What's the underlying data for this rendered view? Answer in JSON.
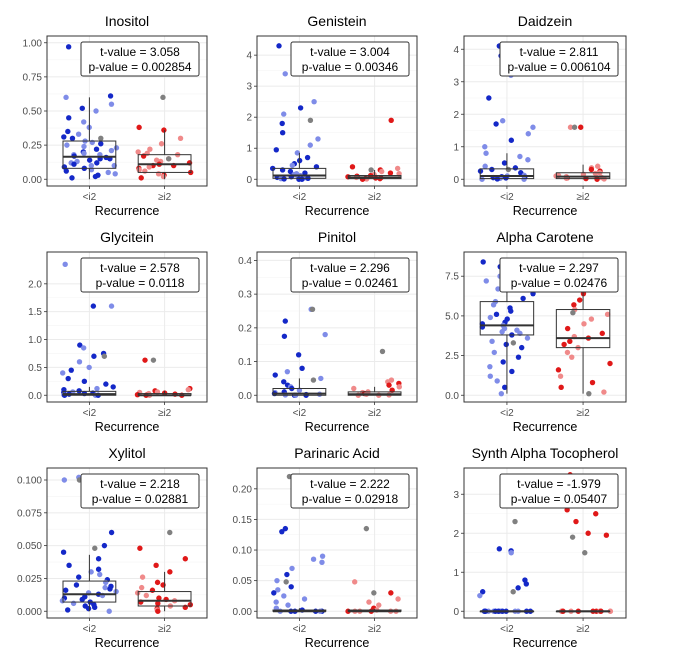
{
  "colors": {
    "low_group": "#1428c8",
    "low_group_light": "#7f8ce8",
    "high_group": "#e01818",
    "high_group_light": "#f08a8a",
    "shared": "#808080",
    "panel_border": "#333333",
    "grid": "#ebebeb",
    "box": "#333333"
  },
  "chart_data": [
    {
      "type": "box",
      "title": "Inositol",
      "xlabel": "Recurrence",
      "ylabel": "",
      "categories": [
        "<i2",
        "≥i2"
      ],
      "ylim": [
        0,
        1.0
      ],
      "yticks": [
        0,
        0.25,
        0.5,
        0.75,
        1.0
      ],
      "ytick_labels": [
        "0.00",
        "0.25",
        "0.50",
        "0.75",
        "1.00"
      ],
      "stats": {
        "t_label": "t-value = ",
        "t": "3.058",
        "p_label": "p-value = ",
        "p": "0.002854"
      },
      "boxes": [
        {
          "q1": 0.08,
          "median": 0.165,
          "q3": 0.28,
          "whisker_low": 0.0,
          "whisker_high": 0.6
        },
        {
          "q1": 0.05,
          "median": 0.11,
          "q3": 0.18,
          "whisker_low": 0.0,
          "whisker_high": 0.36
        }
      ],
      "points": [
        [
          0.61,
          0.6,
          0.55,
          0.52,
          0.5,
          0.45,
          0.42,
          0.38,
          0.35,
          0.33,
          0.31,
          0.3,
          0.28,
          0.27,
          0.26,
          0.25,
          0.24,
          0.23,
          0.22,
          0.21,
          0.2,
          0.2,
          0.19,
          0.18,
          0.18,
          0.17,
          0.16,
          0.15,
          0.15,
          0.14,
          0.13,
          0.12,
          0.12,
          0.11,
          0.1,
          0.1,
          0.09,
          0.08,
          0.07,
          0.06,
          0.05,
          0.04,
          0.03,
          0.02,
          0.01,
          0.97
        ],
        [
          0.38,
          0.36,
          0.3,
          0.26,
          0.22,
          0.2,
          0.19,
          0.18,
          0.17,
          0.15,
          0.14,
          0.13,
          0.12,
          0.11,
          0.1,
          0.1,
          0.09,
          0.08,
          0.07,
          0.06,
          0.05,
          0.04,
          0.03,
          0.02,
          0.01
        ]
      ],
      "shared_points": [
        0.97,
        0.6,
        0.3,
        0.15
      ]
    },
    {
      "type": "box",
      "title": "Genistein",
      "xlabel": "Recurrence",
      "ylabel": "",
      "categories": [
        "<i2",
        "≥i2"
      ],
      "ylim": [
        0,
        4.4
      ],
      "yticks": [
        0,
        1,
        2,
        3,
        4
      ],
      "ytick_labels": [
        "0",
        "1",
        "2",
        "3",
        "4"
      ],
      "stats": {
        "t_label": "t-value = ",
        "t": "3.004",
        "p_label": "p-value = ",
        "p": "0.00346"
      },
      "boxes": [
        {
          "q1": 0.03,
          "median": 0.12,
          "q3": 0.35,
          "whisker_low": 0.0,
          "whisker_high": 0.85
        },
        {
          "q1": 0.02,
          "median": 0.06,
          "q3": 0.12,
          "whisker_low": 0.0,
          "whisker_high": 0.3
        }
      ],
      "points": [
        [
          4.3,
          4.28,
          3.4,
          2.5,
          2.3,
          2.1,
          1.8,
          1.5,
          1.3,
          1.1,
          0.95,
          0.85,
          0.7,
          0.6,
          0.5,
          0.45,
          0.4,
          0.35,
          0.3,
          0.25,
          0.2,
          0.18,
          0.15,
          0.12,
          0.1,
          0.08,
          0.06,
          0.05,
          0.04,
          0.03,
          0.02,
          0.01,
          0.0,
          0.0
        ],
        [
          1.9,
          0.4,
          0.35,
          0.3,
          0.25,
          0.2,
          0.18,
          0.15,
          0.12,
          0.1,
          0.08,
          0.06,
          0.05,
          0.04,
          0.03,
          0.02,
          0.01,
          0.0
        ]
      ],
      "shared_points": [
        4.28,
        3.4,
        1.9,
        0.3
      ]
    },
    {
      "type": "box",
      "title": "Daidzein",
      "xlabel": "Recurrence",
      "ylabel": "",
      "categories": [
        "<i2",
        "≥i2"
      ],
      "ylim": [
        0,
        4.2
      ],
      "yticks": [
        0,
        1,
        2,
        3,
        4
      ],
      "ytick_labels": [
        "0",
        "1",
        "2",
        "3",
        "4"
      ],
      "stats": {
        "t_label": "t-value = ",
        "t": "2.811",
        "p_label": "p-value = ",
        "p": "0.006104"
      },
      "boxes": [
        {
          "q1": 0.02,
          "median": 0.1,
          "q3": 0.32,
          "whisker_low": 0.0,
          "whisker_high": 0.8
        },
        {
          "q1": 0.02,
          "median": 0.08,
          "q3": 0.2,
          "whisker_low": 0.0,
          "whisker_high": 0.45
        }
      ],
      "points": [
        [
          4.1,
          3.8,
          3.2,
          2.5,
          1.8,
          1.7,
          1.6,
          1.4,
          1.2,
          1.0,
          0.8,
          0.7,
          0.6,
          0.5,
          0.4,
          0.35,
          0.3,
          0.25,
          0.2,
          0.15,
          0.12,
          0.1,
          0.08,
          0.06,
          0.05,
          0.04,
          0.03,
          0.02,
          0.01,
          0.0,
          0.0
        ],
        [
          1.6,
          1.6,
          0.4,
          0.35,
          0.3,
          0.25,
          0.2,
          0.18,
          0.15,
          0.12,
          0.1,
          0.08,
          0.06,
          0.05,
          0.04,
          0.03,
          0.02,
          0.01,
          0.0
        ]
      ],
      "shared_points": [
        3.8,
        1.6,
        0.3
      ]
    },
    {
      "type": "box",
      "title": "Glycitein",
      "xlabel": "Recurrence",
      "ylabel": "",
      "categories": [
        "<i2",
        "≥i2"
      ],
      "ylim": [
        0,
        2.45
      ],
      "yticks": [
        0,
        0.5,
        1.0,
        1.5,
        2.0
      ],
      "ytick_labels": [
        "0.0",
        "0.5",
        "1.0",
        "1.5",
        "2.0"
      ],
      "stats": {
        "t_label": "t-value = ",
        "t": "2.578",
        "p_label": "p-value = ",
        "p": "0.0118"
      },
      "boxes": [
        {
          "q1": 0.0,
          "median": 0.02,
          "q3": 0.07,
          "whisker_low": 0.0,
          "whisker_high": 0.15
        },
        {
          "q1": 0.0,
          "median": 0.0,
          "q3": 0.03,
          "whisker_low": 0.0,
          "whisker_high": 0.08
        }
      ],
      "points": [
        [
          2.35,
          2.35,
          1.6,
          1.6,
          0.9,
          0.85,
          0.75,
          0.7,
          0.6,
          0.5,
          0.45,
          0.4,
          0.3,
          0.25,
          0.2,
          0.15,
          0.12,
          0.1,
          0.08,
          0.06,
          0.05,
          0.04,
          0.03,
          0.02,
          0.01,
          0.0,
          0.0,
          0.0
        ],
        [
          0.63,
          0.12,
          0.1,
          0.08,
          0.06,
          0.05,
          0.04,
          0.03,
          0.02,
          0.01,
          0.0,
          0.0,
          0.0
        ]
      ],
      "shared_points": [
        2.35,
        0.63,
        0.7
      ]
    },
    {
      "type": "box",
      "title": "Pinitol",
      "xlabel": "Recurrence",
      "ylabel": "",
      "categories": [
        "<i2",
        "≥i2"
      ],
      "ylim": [
        0,
        0.405
      ],
      "yticks": [
        0,
        0.1,
        0.2,
        0.3,
        0.4
      ],
      "ytick_labels": [
        "0.0",
        "0.1",
        "0.2",
        "0.3",
        "0.4"
      ],
      "stats": {
        "t_label": "t-value = ",
        "t": "2.296",
        "p_label": "p-value = ",
        "p": "0.02461"
      },
      "boxes": [
        {
          "q1": 0.0,
          "median": 0.005,
          "q3": 0.02,
          "whisker_low": 0.0,
          "whisker_high": 0.05
        },
        {
          "q1": 0.0,
          "median": 0.003,
          "q3": 0.01,
          "whisker_low": 0.0,
          "whisker_high": 0.025
        }
      ],
      "points": [
        [
          0.395,
          0.255,
          0.22,
          0.18,
          0.175,
          0.12,
          0.08,
          0.07,
          0.06,
          0.05,
          0.04,
          0.03,
          0.025,
          0.02,
          0.015,
          0.01,
          0.008,
          0.005,
          0.003,
          0.002,
          0.001,
          0.0,
          0.0,
          0.0
        ],
        [
          0.045,
          0.04,
          0.035,
          0.03,
          0.025,
          0.02,
          0.015,
          0.01,
          0.008,
          0.005,
          0.003,
          0.001,
          0.0,
          0.0
        ]
      ],
      "shared_points": [
        0.255,
        0.13,
        0.045
      ]
    },
    {
      "type": "box",
      "title": "Alpha Carotene",
      "xlabel": "Recurrence",
      "ylabel": "",
      "categories": [
        "<i2",
        "≥i2"
      ],
      "ylim": [
        0,
        8.6
      ],
      "yticks": [
        0,
        2.5,
        5.0,
        7.5
      ],
      "ytick_labels": [
        "0.0",
        "2.5",
        "5.0",
        "7.5"
      ],
      "stats": {
        "t_label": "t-value = ",
        "t": "2.297",
        "p_label": "p-value = ",
        "p": "0.02476"
      },
      "boxes": [
        {
          "q1": 3.8,
          "median": 4.4,
          "q3": 5.9,
          "whisker_low": 0.1,
          "whisker_high": 8.4
        },
        {
          "q1": 3.0,
          "median": 3.6,
          "q3": 5.4,
          "whisker_low": 0.1,
          "whisker_high": 7.7
        }
      ],
      "points": [
        [
          8.4,
          8.1,
          7.8,
          7.5,
          7.2,
          7.0,
          6.7,
          6.4,
          6.1,
          5.9,
          5.7,
          5.5,
          5.3,
          5.1,
          4.9,
          4.8,
          4.6,
          4.5,
          4.4,
          4.3,
          4.2,
          4.1,
          4.0,
          3.9,
          3.8,
          3.6,
          3.4,
          3.2,
          3.0,
          2.7,
          2.4,
          2.1,
          1.8,
          1.5,
          1.2,
          0.9,
          0.5,
          0.1
        ],
        [
          7.7,
          7.5,
          7.2,
          6.8,
          6.4,
          6.0,
          5.7,
          5.4,
          5.1,
          4.8,
          4.5,
          4.2,
          3.9,
          3.7,
          3.6,
          3.4,
          3.2,
          3.0,
          2.7,
          2.4,
          2.0,
          1.6,
          1.2,
          0.8,
          0.5,
          0.2
        ]
      ],
      "shared_points": [
        8.0,
        5.2,
        3.3,
        0.1
      ]
    },
    {
      "type": "box",
      "title": "Xylitol",
      "xlabel": "Recurrence",
      "ylabel": "",
      "categories": [
        "<i2",
        "≥i2"
      ],
      "ylim": [
        0,
        0.104
      ],
      "yticks": [
        0,
        0.025,
        0.05,
        0.075,
        0.1
      ],
      "ytick_labels": [
        "0.000",
        "0.025",
        "0.050",
        "0.075",
        "0.100"
      ],
      "stats": {
        "t_label": "t-value = ",
        "t": "2.218",
        "p_label": "p-value = ",
        "p": "0.02881"
      },
      "boxes": [
        {
          "q1": 0.007,
          "median": 0.013,
          "q3": 0.023,
          "whisker_low": 0.0,
          "whisker_high": 0.043
        },
        {
          "q1": 0.004,
          "median": 0.008,
          "q3": 0.015,
          "whisker_low": 0.0,
          "whisker_high": 0.03
        }
      ],
      "points": [
        [
          0.102,
          0.1,
          0.06,
          0.05,
          0.045,
          0.04,
          0.035,
          0.032,
          0.03,
          0.028,
          0.026,
          0.024,
          0.022,
          0.02,
          0.019,
          0.018,
          0.017,
          0.016,
          0.015,
          0.014,
          0.013,
          0.012,
          0.011,
          0.01,
          0.009,
          0.008,
          0.007,
          0.006,
          0.005,
          0.004,
          0.003,
          0.002,
          0.001,
          0.0
        ],
        [
          0.048,
          0.04,
          0.035,
          0.03,
          0.026,
          0.022,
          0.02,
          0.018,
          0.016,
          0.014,
          0.012,
          0.01,
          0.009,
          0.008,
          0.007,
          0.006,
          0.005,
          0.004,
          0.003,
          0.002,
          0.001,
          0.0
        ]
      ],
      "shared_points": [
        0.1,
        0.06,
        0.048
      ]
    },
    {
      "type": "box",
      "title": "Parinaric Acid",
      "xlabel": "Recurrence",
      "ylabel": "",
      "categories": [
        "<i2",
        "≥i2"
      ],
      "ylim": [
        0,
        0.223
      ],
      "yticks": [
        0,
        0.05,
        0.1,
        0.15,
        0.2
      ],
      "ytick_labels": [
        "0.00",
        "0.05",
        "0.10",
        "0.15",
        "0.20"
      ],
      "stats": {
        "t_label": "t-value = ",
        "t": "2.222",
        "p_label": "p-value = ",
        "p": "0.02918"
      },
      "boxes": [
        {
          "q1": 0.0,
          "median": 0.0,
          "q3": 0.002,
          "whisker_low": 0.0,
          "whisker_high": 0.005
        },
        {
          "q1": 0.0,
          "median": 0.0,
          "q3": 0.002,
          "whisker_low": 0.0,
          "whisker_high": 0.004
        }
      ],
      "points": [
        [
          0.22,
          0.22,
          0.135,
          0.13,
          0.09,
          0.085,
          0.08,
          0.07,
          0.06,
          0.05,
          0.04,
          0.035,
          0.03,
          0.025,
          0.02,
          0.015,
          0.01,
          0.005,
          0.002,
          0.0,
          0.0,
          0.0,
          0.0,
          0.0,
          0.0
        ],
        [
          0.048,
          0.03,
          0.02,
          0.015,
          0.01,
          0.005,
          0.002,
          0.0,
          0.0,
          0.0,
          0.0,
          0.0,
          0.0
        ]
      ],
      "shared_points": [
        0.22,
        0.135,
        0.048,
        0.03
      ]
    },
    {
      "type": "box",
      "title": "Synth Alpha Tocopherol",
      "xlabel": "Recurrence",
      "ylabel": "",
      "categories": [
        "<i2",
        "≥i2"
      ],
      "ylim": [
        0,
        3.5
      ],
      "yticks": [
        0,
        1,
        2,
        3
      ],
      "ytick_labels": [
        "0",
        "1",
        "2",
        "3"
      ],
      "stats": {
        "t_label": "t-value = ",
        "t": "-1.979",
        "p_label": "p-value = ",
        "p": "0.05407"
      },
      "boxes": [
        {
          "q1": 0.0,
          "median": 0.0,
          "q3": 0.0,
          "whisker_low": 0.0,
          "whisker_high": 0.0
        },
        {
          "q1": 0.0,
          "median": 0.0,
          "q3": 0.0,
          "whisker_low": 0.0,
          "whisker_high": 0.0
        }
      ],
      "points": [
        [
          2.9,
          1.6,
          1.55,
          1.5,
          0.8,
          0.7,
          0.6,
          0.5,
          0.4,
          0.0,
          0.0,
          0.0,
          0.0,
          0.0,
          0.0,
          0.0,
          0.0,
          0.0,
          0.0,
          0.0,
          0.0,
          0.0,
          0.0,
          0.0,
          0.0
        ],
        [
          3.5,
          3.2,
          2.9,
          2.6,
          2.5,
          2.3,
          2.0,
          1.95,
          0.0,
          0.0,
          0.0,
          0.0,
          0.0,
          0.0,
          0.0,
          0.0,
          0.0,
          0.0,
          0.0,
          0.0
        ]
      ],
      "shared_points": [
        2.9,
        1.5,
        0.5,
        3.3,
        2.3,
        1.9
      ]
    }
  ]
}
